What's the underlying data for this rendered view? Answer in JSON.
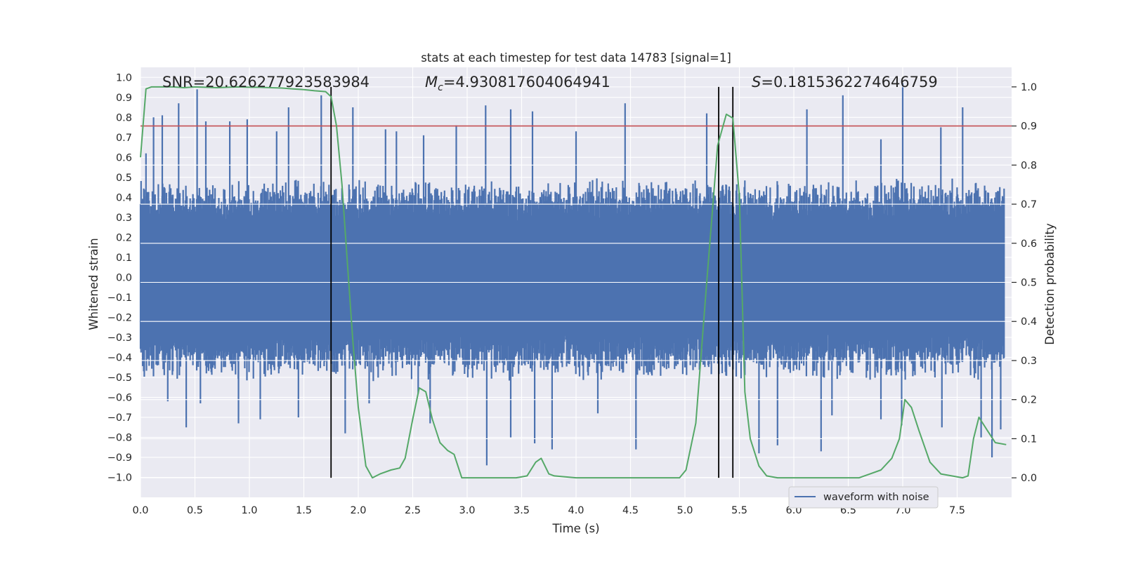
{
  "chart_data": {
    "type": "line",
    "title": "stats at each timestep for test data 14783 [signal=1]",
    "xlabel": "Time (s)",
    "ylabel": "Whitened strain",
    "ylabel_right": "Detection probability",
    "xlim": [
      0.0,
      8.0
    ],
    "ylim": [
      -1.1,
      1.05
    ],
    "ylim_right": [
      -0.05,
      1.05
    ],
    "xticks": [
      0.0,
      0.5,
      1.0,
      1.5,
      2.0,
      2.5,
      3.0,
      3.5,
      4.0,
      4.5,
      5.0,
      5.5,
      6.0,
      6.5,
      7.0,
      7.5
    ],
    "xtick_labels": [
      "0.0",
      "0.5",
      "1.0",
      "1.5",
      "2.0",
      "2.5",
      "3.0",
      "3.5",
      "4.0",
      "4.5",
      "5.0",
      "5.5",
      "6.0",
      "6.5",
      "7.0",
      "7.5"
    ],
    "yticks": [
      1.0,
      0.9,
      0.8,
      0.7,
      0.6,
      0.5,
      0.4,
      0.3,
      0.2,
      0.1,
      0.0,
      -0.1,
      -0.2,
      -0.3,
      -0.4,
      -0.5,
      -0.6,
      -0.7,
      -0.8,
      -0.9,
      -1.0
    ],
    "ytick_labels": [
      "1.0",
      "0.9",
      "0.8",
      "0.7",
      "0.6",
      "0.5",
      "0.4",
      "0.3",
      "0.2",
      "0.1",
      "0.0",
      "−0.1",
      "−0.2",
      "−0.3",
      "−0.4",
      "−0.5",
      "−0.6",
      "−0.7",
      "−0.8",
      "−0.9",
      "−1.0"
    ],
    "yticks_right": [
      1.0,
      0.9,
      0.8,
      0.7,
      0.6,
      0.5,
      0.4,
      0.3,
      0.2,
      0.1,
      0.0
    ],
    "ytick_labels_right": [
      "1.0",
      "0.9",
      "0.8",
      "0.7",
      "0.6",
      "0.5",
      "0.4",
      "0.3",
      "0.2",
      "0.1",
      "0.0"
    ],
    "grid": true,
    "legend": {
      "entries": [
        "waveform with noise"
      ],
      "placement": "lower-right"
    },
    "annotations": {
      "snr": "SNR=20.626277923583984",
      "mc_symbol": "M",
      "mc_sub": "c",
      "mc_value": "=4.930817604064941",
      "s_symbol": "S",
      "s_value": "=0.1815362274646759"
    },
    "threshold_line": {
      "value": 0.9,
      "axis": "right",
      "color": "#c44e52"
    },
    "vertical_lines": [
      1.75,
      5.31,
      5.44
    ],
    "waveform": {
      "name": "waveform with noise",
      "color": "#4c72b0",
      "samples": 1600,
      "typical_amplitude": 0.5,
      "spikes_up": [
        [
          0.05,
          0.62
        ],
        [
          0.12,
          0.8
        ],
        [
          0.2,
          0.81
        ],
        [
          0.35,
          0.87
        ],
        [
          0.52,
          0.94
        ],
        [
          0.6,
          0.78
        ],
        [
          0.82,
          0.78
        ],
        [
          0.98,
          0.79
        ],
        [
          1.25,
          0.73
        ],
        [
          1.36,
          0.85
        ],
        [
          1.66,
          0.91
        ],
        [
          1.95,
          0.85
        ],
        [
          2.25,
          0.74
        ],
        [
          2.35,
          0.73
        ],
        [
          2.6,
          0.71
        ],
        [
          2.9,
          0.76
        ],
        [
          3.17,
          0.86
        ],
        [
          3.4,
          0.84
        ],
        [
          3.6,
          0.83
        ],
        [
          4.0,
          0.73
        ],
        [
          4.45,
          0.87
        ],
        [
          5.2,
          0.82
        ],
        [
          6.12,
          0.84
        ],
        [
          6.45,
          0.91
        ],
        [
          6.8,
          0.69
        ],
        [
          7.0,
          0.97
        ],
        [
          7.35,
          0.75
        ],
        [
          7.55,
          0.85
        ]
      ],
      "spikes_down": [
        [
          0.25,
          -0.62
        ],
        [
          0.42,
          -0.75
        ],
        [
          0.55,
          -0.63
        ],
        [
          0.9,
          -0.73
        ],
        [
          1.1,
          -0.71
        ],
        [
          1.45,
          -0.7
        ],
        [
          1.88,
          -0.78
        ],
        [
          2.1,
          -0.63
        ],
        [
          2.55,
          -0.58
        ],
        [
          2.66,
          -0.73
        ],
        [
          3.18,
          -0.94
        ],
        [
          3.4,
          -0.8
        ],
        [
          3.62,
          -0.83
        ],
        [
          3.78,
          -0.86
        ],
        [
          4.2,
          -0.68
        ],
        [
          4.55,
          -0.86
        ],
        [
          5.68,
          -0.88
        ],
        [
          5.85,
          -0.84
        ],
        [
          6.25,
          -0.87
        ],
        [
          6.35,
          -0.69
        ],
        [
          6.8,
          -0.71
        ],
        [
          6.99,
          -0.74
        ],
        [
          7.36,
          -0.75
        ],
        [
          7.72,
          -0.8
        ],
        [
          7.82,
          -0.9
        ],
        [
          7.9,
          -0.76
        ]
      ]
    },
    "probability": {
      "name": "detection probability",
      "color": "#55a868",
      "x": [
        0.0,
        0.05,
        0.1,
        0.2,
        0.3,
        0.4,
        0.5,
        0.6,
        0.7,
        0.8,
        0.9,
        1.0,
        1.1,
        1.2,
        1.3,
        1.4,
        1.5,
        1.6,
        1.7,
        1.75,
        1.8,
        1.85,
        1.9,
        1.95,
        2.0,
        2.07,
        2.13,
        2.2,
        2.3,
        2.38,
        2.43,
        2.5,
        2.56,
        2.62,
        2.68,
        2.75,
        2.82,
        2.88,
        2.95,
        3.1,
        3.3,
        3.45,
        3.55,
        3.63,
        3.68,
        3.75,
        3.8,
        4.0,
        4.2,
        4.4,
        4.6,
        4.8,
        4.95,
        5.01,
        5.1,
        5.2,
        5.3,
        5.38,
        5.44,
        5.5,
        5.55,
        5.6,
        5.68,
        5.75,
        5.85,
        6.0,
        6.2,
        6.4,
        6.6,
        6.7,
        6.8,
        6.9,
        6.97,
        7.02,
        7.08,
        7.15,
        7.25,
        7.35,
        7.45,
        7.55,
        7.6,
        7.65,
        7.7,
        7.78,
        7.85,
        7.95
      ],
      "y": [
        0.82,
        0.995,
        1.0,
        1.0,
        1.0,
        0.998,
        1.0,
        0.999,
        0.998,
        0.999,
        1.0,
        0.999,
        0.999,
        0.998,
        0.997,
        0.995,
        0.993,
        0.99,
        0.988,
        0.975,
        0.9,
        0.75,
        0.55,
        0.35,
        0.18,
        0.03,
        0.0,
        0.01,
        0.02,
        0.025,
        0.05,
        0.15,
        0.23,
        0.22,
        0.15,
        0.09,
        0.07,
        0.06,
        0.0,
        0.0,
        0.0,
        0.0,
        0.005,
        0.04,
        0.05,
        0.01,
        0.005,
        0.0,
        0.0,
        0.0,
        0.0,
        0.0,
        0.0,
        0.02,
        0.14,
        0.5,
        0.85,
        0.93,
        0.92,
        0.72,
        0.22,
        0.1,
        0.03,
        0.005,
        0.0,
        0.0,
        0.0,
        0.0,
        0.0,
        0.01,
        0.02,
        0.05,
        0.1,
        0.2,
        0.18,
        0.12,
        0.04,
        0.01,
        0.005,
        0.0,
        0.005,
        0.1,
        0.155,
        0.12,
        0.09,
        0.085
      ]
    }
  }
}
